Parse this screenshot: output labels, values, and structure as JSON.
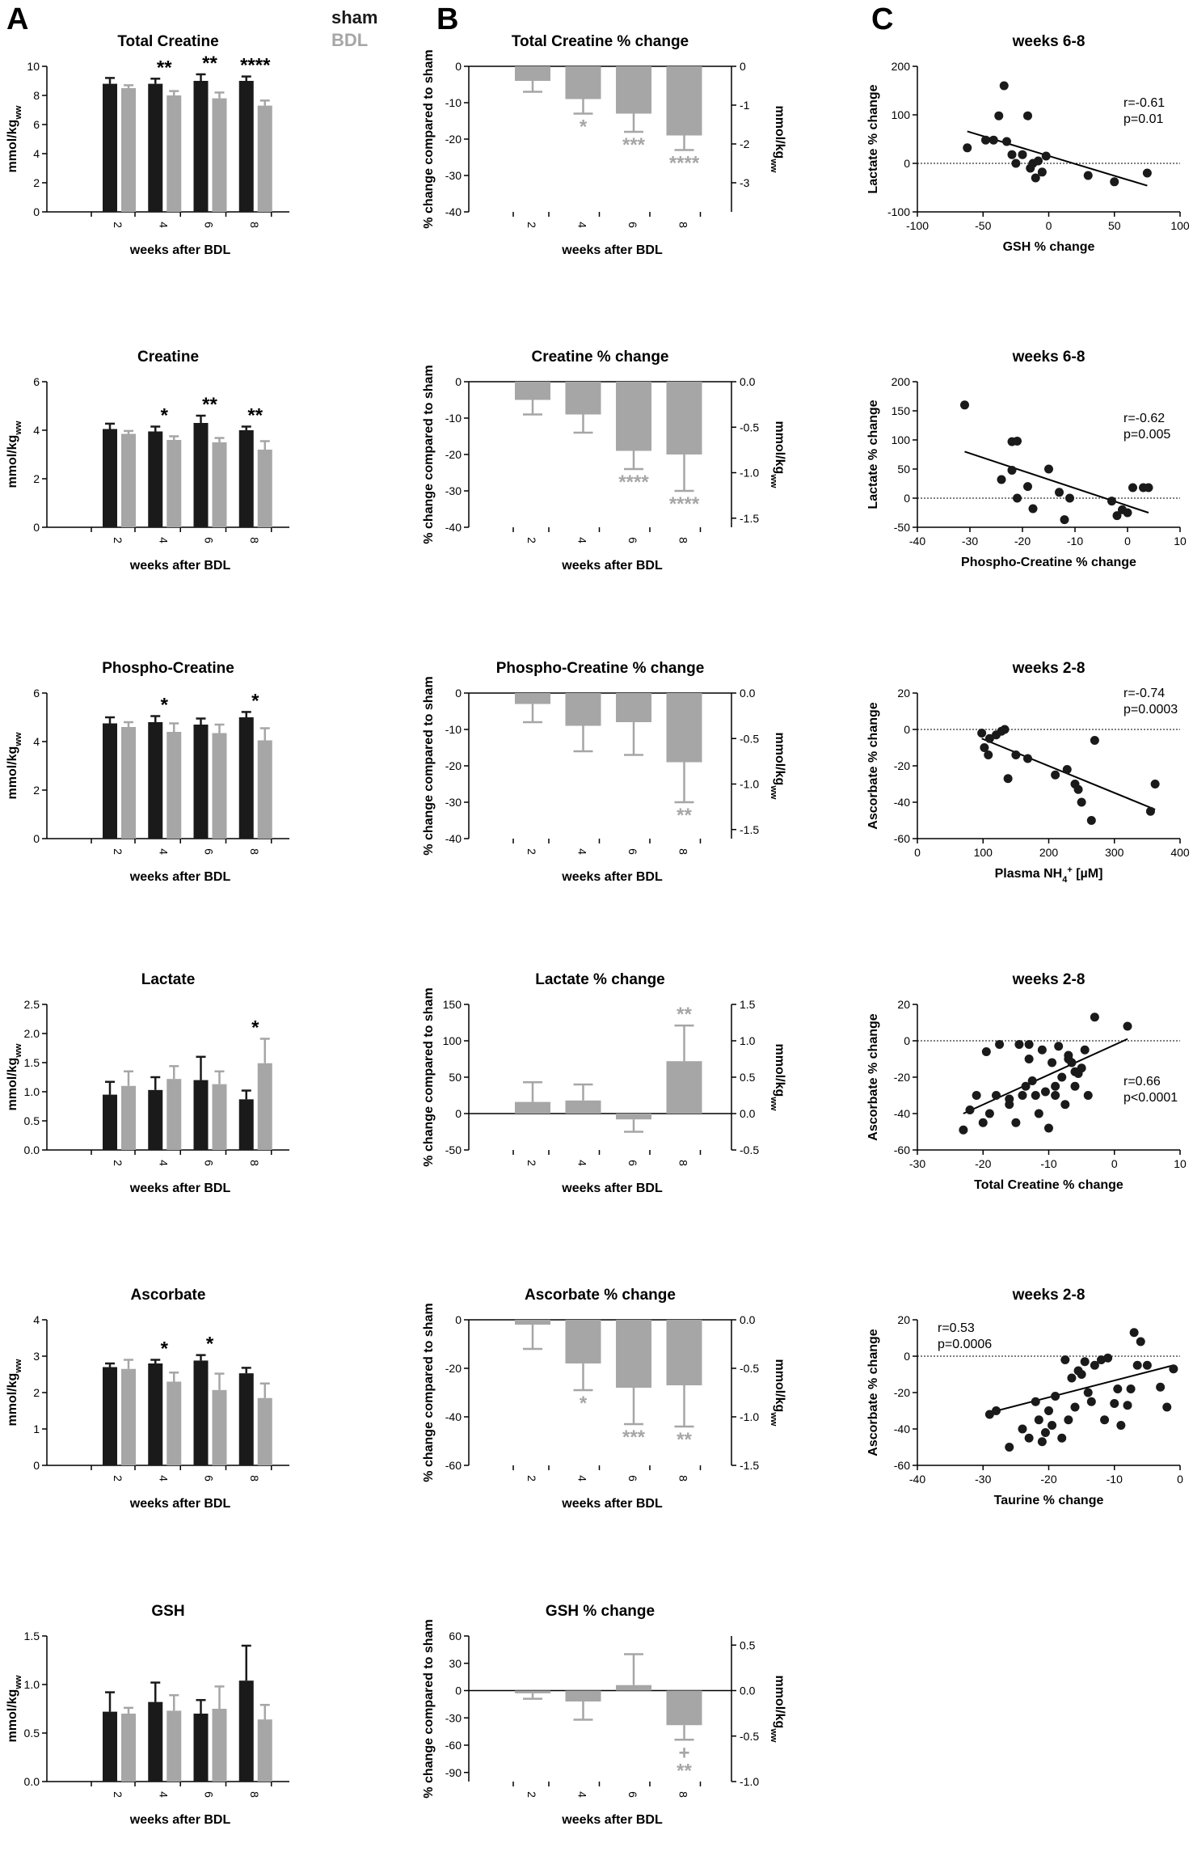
{
  "panels": {
    "A": "A",
    "B": "B",
    "C": "C"
  },
  "legend": {
    "sham": "sham",
    "bdl": "BDL",
    "sham_color": "#1a1a1a",
    "bdl_color": "#a6a6a6"
  },
  "colors": {
    "sham": "#1a1a1a",
    "bdl": "#a6a6a6",
    "point": "#1a1a1a"
  },
  "chart_data": [
    {
      "id": "A1",
      "type": "bar",
      "title": "Total Creatine",
      "xlabel": "weeks after BDL",
      "ylabel": "mmol/kgww",
      "categories": [
        "2",
        "4",
        "6",
        "8"
      ],
      "ylim": [
        0,
        10
      ],
      "yticks": [
        0,
        2,
        4,
        6,
        8,
        10
      ],
      "series": [
        {
          "name": "sham",
          "values": [
            8.8,
            8.8,
            9.0,
            9.0
          ],
          "errors": [
            0.4,
            0.35,
            0.45,
            0.3
          ]
        },
        {
          "name": "BDL",
          "values": [
            8.5,
            8.0,
            7.8,
            7.3
          ],
          "errors": [
            0.2,
            0.3,
            0.4,
            0.35
          ]
        }
      ],
      "sig": [
        {
          "cat": 1,
          "text": "**"
        },
        {
          "cat": 2,
          "text": "**"
        },
        {
          "cat": 3,
          "text": "****"
        }
      ]
    },
    {
      "id": "A2",
      "type": "bar",
      "title": "Creatine",
      "xlabel": "weeks after BDL",
      "ylabel": "mmol/kgww",
      "categories": [
        "2",
        "4",
        "6",
        "8"
      ],
      "ylim": [
        0,
        6
      ],
      "yticks": [
        0,
        2,
        4,
        6
      ],
      "series": [
        {
          "name": "sham",
          "values": [
            4.05,
            3.95,
            4.3,
            4.0
          ],
          "errors": [
            0.22,
            0.2,
            0.3,
            0.15
          ]
        },
        {
          "name": "BDL",
          "values": [
            3.85,
            3.6,
            3.5,
            3.2
          ],
          "errors": [
            0.12,
            0.15,
            0.18,
            0.35
          ]
        }
      ],
      "sig": [
        {
          "cat": 1,
          "text": "*"
        },
        {
          "cat": 2,
          "text": "**"
        },
        {
          "cat": 3,
          "text": "**"
        }
      ]
    },
    {
      "id": "A3",
      "type": "bar",
      "title": "Phospho-Creatine",
      "xlabel": "weeks after BDL",
      "ylabel": "mmol/kgww",
      "categories": [
        "2",
        "4",
        "6",
        "8"
      ],
      "ylim": [
        0,
        6
      ],
      "yticks": [
        0,
        2,
        4,
        6
      ],
      "series": [
        {
          "name": "sham",
          "values": [
            4.75,
            4.8,
            4.7,
            5.0
          ],
          "errors": [
            0.25,
            0.25,
            0.25,
            0.22
          ]
        },
        {
          "name": "BDL",
          "values": [
            4.6,
            4.4,
            4.35,
            4.05
          ],
          "errors": [
            0.2,
            0.35,
            0.35,
            0.5
          ]
        }
      ],
      "sig": [
        {
          "cat": 1,
          "text": "*"
        },
        {
          "cat": 3,
          "text": "*"
        }
      ]
    },
    {
      "id": "A4",
      "type": "bar",
      "title": "Lactate",
      "xlabel": "weeks after BDL",
      "ylabel": "mmol/kgww",
      "categories": [
        "2",
        "4",
        "6",
        "8"
      ],
      "ylim": [
        0,
        2.5
      ],
      "yticks": [
        0.0,
        0.5,
        1.0,
        1.5,
        2.0,
        2.5
      ],
      "ydec": 1,
      "series": [
        {
          "name": "sham",
          "values": [
            0.95,
            1.03,
            1.2,
            0.87
          ],
          "errors": [
            0.22,
            0.22,
            0.4,
            0.15
          ]
        },
        {
          "name": "BDL",
          "values": [
            1.1,
            1.22,
            1.13,
            1.49
          ],
          "errors": [
            0.25,
            0.22,
            0.22,
            0.42
          ]
        }
      ],
      "sig": [
        {
          "cat": 3,
          "text": "*"
        }
      ]
    },
    {
      "id": "A5",
      "type": "bar",
      "title": "Ascorbate",
      "xlabel": "weeks after BDL",
      "ylabel": "mmol/kgww",
      "categories": [
        "2",
        "4",
        "6",
        "8"
      ],
      "ylim": [
        0,
        4
      ],
      "yticks": [
        0,
        1,
        2,
        3,
        4
      ],
      "series": [
        {
          "name": "sham",
          "values": [
            2.7,
            2.8,
            2.88,
            2.53
          ],
          "errors": [
            0.1,
            0.1,
            0.15,
            0.15
          ]
        },
        {
          "name": "BDL",
          "values": [
            2.65,
            2.3,
            2.07,
            1.85
          ],
          "errors": [
            0.25,
            0.25,
            0.45,
            0.4
          ]
        }
      ],
      "sig": [
        {
          "cat": 1,
          "text": "*"
        },
        {
          "cat": 2,
          "text": "*"
        }
      ]
    },
    {
      "id": "A6",
      "type": "bar",
      "title": "GSH",
      "xlabel": "weeks after BDL",
      "ylabel": "mmol/kgww",
      "categories": [
        "2",
        "4",
        "6",
        "8"
      ],
      "ylim": [
        0,
        1.5
      ],
      "yticks": [
        0.0,
        0.5,
        1.0,
        1.5
      ],
      "ydec": 1,
      "series": [
        {
          "name": "sham",
          "values": [
            0.72,
            0.82,
            0.7,
            1.04
          ],
          "errors": [
            0.2,
            0.2,
            0.14,
            0.36
          ]
        },
        {
          "name": "BDL",
          "values": [
            0.7,
            0.73,
            0.75,
            0.64
          ],
          "errors": [
            0.06,
            0.16,
            0.23,
            0.15
          ]
        }
      ],
      "sig": []
    },
    {
      "id": "B1",
      "type": "bar",
      "title": "Total Creatine % change",
      "xlabel": "weeks after BDL",
      "ylabel": "% change compared to sham",
      "y2label": "mmol/kgww",
      "categories": [
        "2",
        "4",
        "6",
        "8"
      ],
      "ylim": [
        -40,
        0
      ],
      "yticks": [
        -40,
        -30,
        -20,
        -10,
        0
      ],
      "y2lim": [
        -3.75,
        0
      ],
      "y2ticks": [
        -3,
        -2,
        -1,
        0
      ],
      "values": [
        -4,
        -9,
        -13,
        -19
      ],
      "errors": [
        3,
        4,
        5,
        4
      ],
      "sig": [
        {
          "cat": 1,
          "text": "*"
        },
        {
          "cat": 2,
          "text": "***"
        },
        {
          "cat": 3,
          "text": "****"
        }
      ]
    },
    {
      "id": "B2",
      "type": "bar",
      "title": "Creatine % change",
      "xlabel": "weeks after BDL",
      "ylabel": "% change compared to sham",
      "y2label": "mmol/kgww",
      "categories": [
        "2",
        "4",
        "6",
        "8"
      ],
      "ylim": [
        -40,
        0
      ],
      "yticks": [
        -40,
        -30,
        -20,
        -10,
        0
      ],
      "y2lim": [
        -1.6,
        0
      ],
      "y2ticks": [
        -1.5,
        -1.0,
        -0.5,
        0.0
      ],
      "y2dec": 1,
      "values": [
        -5,
        -9,
        -19,
        -20
      ],
      "errors": [
        4,
        5,
        5,
        10
      ],
      "sig": [
        {
          "cat": 2,
          "text": "****"
        },
        {
          "cat": 3,
          "text": "****"
        }
      ]
    },
    {
      "id": "B3",
      "type": "bar",
      "title": "Phospho-Creatine % change",
      "xlabel": "weeks after BDL",
      "ylabel": "% change compared to sham",
      "y2label": "mmol/kgww",
      "categories": [
        "2",
        "4",
        "6",
        "8"
      ],
      "ylim": [
        -40,
        0
      ],
      "yticks": [
        -40,
        -30,
        -20,
        -10,
        0
      ],
      "y2lim": [
        -1.6,
        0
      ],
      "y2ticks": [
        -1.5,
        -1.0,
        -0.5,
        0.0
      ],
      "y2dec": 1,
      "values": [
        -3,
        -9,
        -8,
        -19
      ],
      "errors": [
        5,
        7,
        9,
        11
      ],
      "sig": [
        {
          "cat": 3,
          "text": "**"
        }
      ]
    },
    {
      "id": "B4",
      "type": "bar",
      "title": "Lactate % change",
      "xlabel": "weeks after BDL",
      "ylabel": "% change compared to sham",
      "y2label": "mmol/kgww",
      "categories": [
        "2",
        "4",
        "6",
        "8"
      ],
      "ylim": [
        -50,
        150
      ],
      "yticks": [
        -50,
        0,
        50,
        100,
        150
      ],
      "y2lim": [
        -0.5,
        1.5
      ],
      "y2ticks": [
        -0.5,
        0.0,
        0.5,
        1.0,
        1.5
      ],
      "y2dec": 1,
      "values": [
        16,
        18,
        -8,
        72
      ],
      "errors": [
        27,
        22,
        17,
        49
      ],
      "sig": [
        {
          "cat": 3,
          "text": "**"
        }
      ]
    },
    {
      "id": "B5",
      "type": "bar",
      "title": "Ascorbate % change",
      "xlabel": "weeks after BDL",
      "ylabel": "% change compared to sham",
      "y2label": "mmol/kgww",
      "categories": [
        "2",
        "4",
        "6",
        "8"
      ],
      "ylim": [
        -60,
        0
      ],
      "yticks": [
        -60,
        -40,
        -20,
        0
      ],
      "y2lim": [
        -1.5,
        0
      ],
      "y2ticks": [
        -1.5,
        -1.0,
        -0.5,
        0.0
      ],
      "y2dec": 1,
      "values": [
        -2,
        -18,
        -28,
        -27
      ],
      "errors": [
        10,
        11,
        15,
        17
      ],
      "sig": [
        {
          "cat": 1,
          "text": "*"
        },
        {
          "cat": 2,
          "text": "***"
        },
        {
          "cat": 3,
          "text": "**"
        }
      ]
    },
    {
      "id": "B6",
      "type": "bar",
      "title": "GSH % change",
      "xlabel": "weeks after BDL",
      "ylabel": "% change compared to sham",
      "y2label": "mmol/kgww",
      "categories": [
        "2",
        "4",
        "6",
        "8"
      ],
      "ylim": [
        -100,
        60
      ],
      "yticks": [
        -90,
        -60,
        -30,
        0,
        30,
        60
      ],
      "y2lim": [
        -1.0,
        0.6
      ],
      "y2ticks": [
        -1.0,
        -0.5,
        0.0,
        0.5
      ],
      "y2dec": 1,
      "values": [
        -3,
        -12,
        6,
        -38
      ],
      "errors": [
        6,
        20,
        34,
        16
      ],
      "sig": [
        {
          "cat": 3,
          "text": "+"
        },
        {
          "cat": 3,
          "text": "**"
        }
      ]
    },
    {
      "id": "C1",
      "type": "scatter",
      "title": "weeks 6-8",
      "xlabel": "GSH % change",
      "ylabel": "Lactate % change",
      "xlim": [
        -100,
        100
      ],
      "ylim": [
        -100,
        200
      ],
      "xticks": [
        -100,
        -50,
        0,
        50,
        100
      ],
      "yticks": [
        -100,
        0,
        100,
        200
      ],
      "stats": [
        "r=-0.61",
        "p=0.01"
      ],
      "stats_pos": "right",
      "x": [
        -62,
        -48,
        -42,
        -38,
        -32,
        -34,
        -28,
        -25,
        -20,
        -16,
        -14,
        -12,
        -10,
        -8,
        -5,
        -2,
        30,
        50,
        75
      ],
      "y": [
        32,
        48,
        48,
        98,
        45,
        160,
        18,
        0,
        18,
        98,
        -10,
        0,
        -30,
        5,
        -18,
        15,
        -25,
        -38,
        -20
      ],
      "fit": [
        [
          -62,
          66
        ],
        [
          75,
          -46
        ]
      ]
    },
    {
      "id": "C2",
      "type": "scatter",
      "title": "weeks 6-8",
      "xlabel": "Phospho-Creatine % change",
      "ylabel": "Lactate % change",
      "xlim": [
        -40,
        10
      ],
      "ylim": [
        -50,
        200
      ],
      "xticks": [
        -40,
        -30,
        -20,
        -10,
        0,
        10
      ],
      "yticks": [
        -50,
        0,
        50,
        100,
        150,
        200
      ],
      "stats": [
        "r=-0.62",
        "p=0.005"
      ],
      "stats_pos": "right",
      "x": [
        -31,
        -24,
        -22,
        -21,
        -22,
        -21,
        -19,
        -18,
        -15,
        -13,
        -12,
        -11,
        -3,
        -2,
        -1,
        0,
        1,
        3,
        4
      ],
      "y": [
        160,
        32,
        97,
        98,
        48,
        0,
        20,
        -18,
        50,
        10,
        -37,
        0,
        -5,
        -30,
        -20,
        -25,
        18,
        18,
        18
      ],
      "fit": [
        [
          -31,
          80
        ],
        [
          4,
          -25
        ]
      ]
    },
    {
      "id": "C3",
      "type": "scatter",
      "title": "weeks 2-8",
      "xlabel": "Plasma NH4+ [µM]",
      "ylabel": "Ascorbate % change",
      "xlim": [
        0,
        400
      ],
      "ylim": [
        -60,
        20
      ],
      "xticks": [
        0,
        100,
        200,
        300,
        400
      ],
      "yticks": [
        -60,
        -40,
        -20,
        0,
        20
      ],
      "stats": [
        "r=-0.74",
        "p=0.0003"
      ],
      "stats_pos": "right",
      "x": [
        98,
        102,
        108,
        110,
        120,
        128,
        133,
        138,
        150,
        168,
        210,
        228,
        240,
        245,
        250,
        265,
        270,
        355,
        362
      ],
      "y": [
        -2,
        -10,
        -14,
        -5,
        -3,
        -1,
        0,
        -27,
        -14,
        -16,
        -25,
        -22,
        -30,
        -33,
        -40,
        -50,
        -6,
        -45,
        -30
      ],
      "fit": [
        [
          98,
          -5
        ],
        [
          362,
          -44
        ]
      ]
    },
    {
      "id": "C4",
      "type": "scatter",
      "title": "weeks 2-8",
      "xlabel": "Total Creatine % change",
      "ylabel": "Ascorbate % change",
      "xlim": [
        -30,
        10
      ],
      "ylim": [
        -60,
        20
      ],
      "xticks": [
        -30,
        -20,
        -10,
        0,
        10
      ],
      "yticks": [
        -60,
        -40,
        -20,
        0,
        20
      ],
      "stats": [
        "r=0.66",
        "p<0.0001"
      ],
      "stats_pos": "right",
      "x": [
        -23,
        -22,
        -21,
        -20,
        -19.5,
        -19,
        -18,
        -17.5,
        -16,
        -15,
        -14.5,
        -14,
        -13.5,
        -13,
        -12.5,
        -12,
        -11.5,
        -11,
        -10.5,
        -10,
        -9.5,
        -9,
        -8.5,
        -8,
        -7.5,
        -7,
        -6.5,
        -6,
        -5.5,
        -5,
        -4.5,
        -4,
        -3,
        2,
        -16,
        -13,
        -9,
        -7,
        -6
      ],
      "y": [
        -49,
        -38,
        -30,
        -45,
        -6,
        -40,
        -30,
        -2,
        -35,
        -45,
        -2,
        -30,
        -25,
        -10,
        -22,
        -30,
        -40,
        -5,
        -28,
        -48,
        -12,
        -30,
        -3,
        -20,
        -35,
        -8,
        -12,
        -25,
        -18,
        -15,
        -5,
        -30,
        13,
        8,
        -32,
        -2,
        -25,
        -10,
        -17
      ],
      "fit": [
        [
          -23,
          -40
        ],
        [
          2,
          1
        ]
      ]
    },
    {
      "id": "C5",
      "type": "scatter",
      "title": "weeks 2-8",
      "xlabel": "Taurine % change",
      "ylabel": "Ascorbate % change",
      "xlim": [
        -40,
        0
      ],
      "ylim": [
        -60,
        20
      ],
      "xticks": [
        -40,
        -30,
        -20,
        -10,
        0
      ],
      "yticks": [
        -60,
        -40,
        -20,
        0,
        20
      ],
      "stats": [
        "r=0.53",
        "p=0.0006"
      ],
      "stats_pos": "left",
      "x": [
        -29,
        -28,
        -26,
        -24,
        -23,
        -22,
        -21.5,
        -21,
        -20.5,
        -20,
        -19.5,
        -19,
        -18,
        -17.5,
        -17,
        -16.5,
        -16,
        -15.5,
        -15,
        -14.5,
        -14,
        -13.5,
        -13,
        -12,
        -11.5,
        -11,
        -10,
        -9.5,
        -9,
        -8,
        -7.5,
        -7,
        -6.5,
        -6,
        -5,
        -3,
        -2,
        -1
      ],
      "y": [
        -32,
        -30,
        -50,
        -40,
        -45,
        -25,
        -35,
        -47,
        -42,
        -30,
        -38,
        -22,
        -45,
        -2,
        -35,
        -12,
        -28,
        -8,
        -10,
        -3,
        -20,
        -25,
        -5,
        -2,
        -35,
        -1,
        -26,
        -18,
        -38,
        -27,
        -18,
        13,
        -5,
        8,
        -5,
        -17,
        -28,
        -7
      ],
      "fit": [
        [
          -29,
          -31
        ],
        [
          -1,
          -5
        ]
      ]
    }
  ]
}
